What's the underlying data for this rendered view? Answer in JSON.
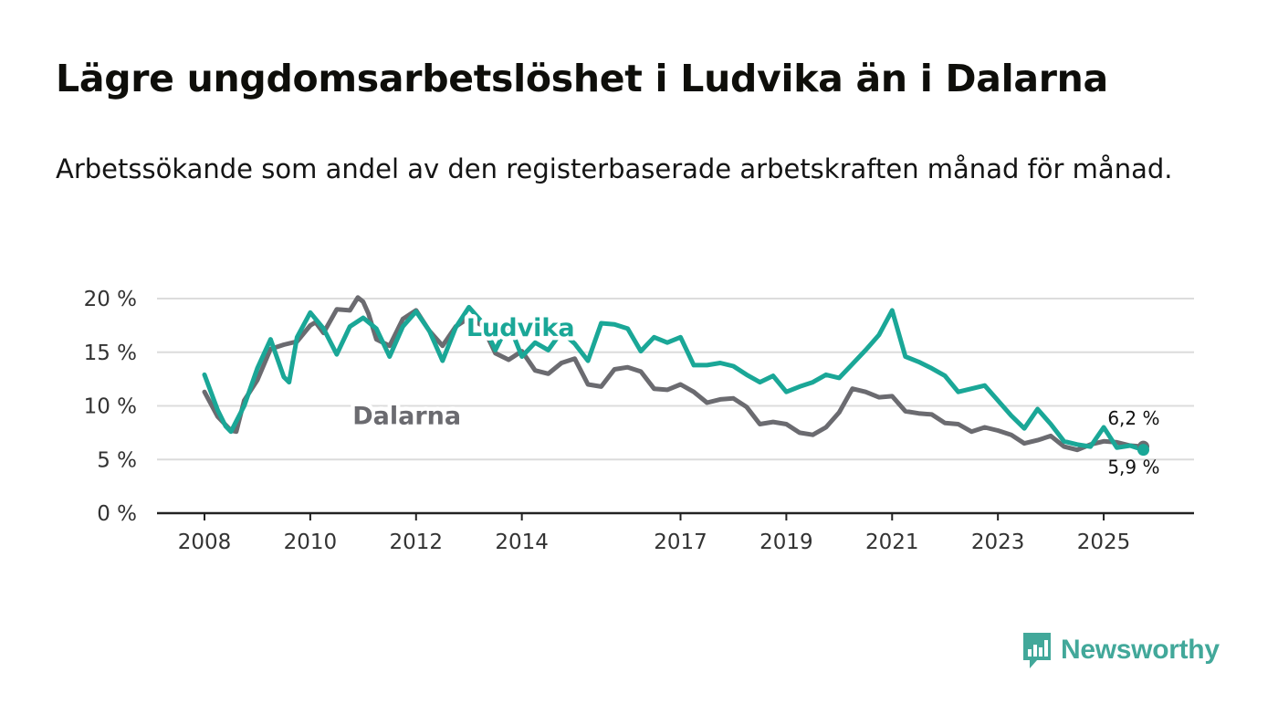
{
  "header": {
    "title": "Lägre ungdomsarbetslöshet i Ludvika än i Dalarna",
    "subtitle": "Arbetssökande som andel av den registerbaserade arbetskraften månad för månad."
  },
  "brand": {
    "name": "Newsworthy",
    "color": "#42a89a",
    "icon": "newsworthy-logo-icon"
  },
  "chart_data": {
    "type": "line",
    "title": "Lägre ungdomsarbetslöshet i Ludvika än i Dalarna",
    "subtitle": "Arbetssökande som andel av den registerbaserade arbetskraften månad för månad.",
    "xlabel": "",
    "ylabel": "",
    "xlim": [
      2008.0,
      2026.0
    ],
    "ylim": [
      0,
      20
    ],
    "grid": true,
    "y_ticks": [
      {
        "value": 0,
        "label": "0 %"
      },
      {
        "value": 5,
        "label": "5 %"
      },
      {
        "value": 10,
        "label": "10 %"
      },
      {
        "value": 15,
        "label": "15 %"
      },
      {
        "value": 20,
        "label": "20 %"
      }
    ],
    "x_ticks": [
      {
        "value": 2008,
        "label": "2008"
      },
      {
        "value": 2010,
        "label": "2010"
      },
      {
        "value": 2012,
        "label": "2012"
      },
      {
        "value": 2014,
        "label": "2014"
      },
      {
        "value": 2017,
        "label": "2017"
      },
      {
        "value": 2019,
        "label": "2019"
      },
      {
        "value": 2021,
        "label": "2021"
      },
      {
        "value": 2023,
        "label": "2023"
      },
      {
        "value": 2025,
        "label": "2025"
      }
    ],
    "series": [
      {
        "name": "Dalarna",
        "color": "#6b6b70",
        "end_label": "6,2 %",
        "label_pos": {
          "x": 2010.8,
          "y": 8.3
        },
        "x": [
          2008.0,
          2008.25,
          2008.5,
          2008.6,
          2008.75,
          2009.0,
          2009.25,
          2009.5,
          2009.75,
          2010.0,
          2010.1,
          2010.25,
          2010.5,
          2010.75,
          2010.9,
          2011.0,
          2011.1,
          2011.25,
          2011.5,
          2011.75,
          2012.0,
          2012.25,
          2012.5,
          2012.75,
          2013.0,
          2013.25,
          2013.5,
          2013.75,
          2014.0,
          2014.25,
          2014.5,
          2014.75,
          2015.0,
          2015.25,
          2015.5,
          2015.75,
          2016.0,
          2016.25,
          2016.5,
          2016.75,
          2017.0,
          2017.25,
          2017.5,
          2017.75,
          2018.0,
          2018.25,
          2018.5,
          2018.75,
          2019.0,
          2019.25,
          2019.5,
          2019.75,
          2020.0,
          2020.25,
          2020.5,
          2020.75,
          2021.0,
          2021.25,
          2021.5,
          2021.75,
          2022.0,
          2022.25,
          2022.5,
          2022.75,
          2023.0,
          2023.25,
          2023.5,
          2023.75,
          2024.0,
          2024.25,
          2024.5,
          2024.75,
          2025.0,
          2025.25,
          2025.5,
          2025.75
        ],
        "values": [
          11.3,
          9.0,
          7.7,
          7.6,
          10.5,
          12.4,
          15.3,
          15.7,
          16.0,
          17.5,
          17.8,
          16.8,
          19.0,
          18.9,
          20.1,
          19.7,
          18.6,
          16.2,
          15.6,
          18.1,
          18.9,
          17.0,
          15.6,
          17.4,
          18.2,
          17.5,
          14.9,
          14.3,
          15.1,
          13.3,
          13.0,
          14.0,
          14.4,
          12.0,
          11.8,
          13.4,
          13.6,
          13.2,
          11.6,
          11.5,
          12.0,
          11.3,
          10.3,
          10.6,
          10.7,
          9.9,
          8.3,
          8.5,
          8.3,
          7.5,
          7.3,
          8.0,
          9.4,
          11.6,
          11.3,
          10.8,
          10.9,
          9.5,
          9.3,
          9.2,
          8.4,
          8.3,
          7.6,
          8.0,
          7.7,
          7.3,
          6.5,
          6.8,
          7.2,
          6.2,
          5.9,
          6.4,
          6.7,
          6.6,
          6.3,
          6.2
        ]
      },
      {
        "name": "Ludvika",
        "color": "#1aa797",
        "end_label": "5,9 %",
        "label_pos": {
          "x": 2012.95,
          "y": 16.5
        },
        "x": [
          2008.0,
          2008.25,
          2008.4,
          2008.5,
          2008.75,
          2009.0,
          2009.25,
          2009.5,
          2009.6,
          2009.75,
          2010.0,
          2010.25,
          2010.5,
          2010.75,
          2011.0,
          2011.25,
          2011.5,
          2011.75,
          2012.0,
          2012.25,
          2012.5,
          2012.75,
          2013.0,
          2013.25,
          2013.5,
          2013.75,
          2014.0,
          2014.25,
          2014.5,
          2014.75,
          2015.0,
          2015.25,
          2015.5,
          2015.75,
          2016.0,
          2016.25,
          2016.5,
          2016.75,
          2017.0,
          2017.25,
          2017.5,
          2017.75,
          2018.0,
          2018.25,
          2018.5,
          2018.75,
          2019.0,
          2019.25,
          2019.5,
          2019.75,
          2020.0,
          2020.25,
          2020.5,
          2020.75,
          2021.0,
          2021.25,
          2021.5,
          2021.75,
          2022.0,
          2022.25,
          2022.5,
          2022.75,
          2023.0,
          2023.25,
          2023.5,
          2023.75,
          2024.0,
          2024.25,
          2024.5,
          2024.75,
          2025.0,
          2025.25,
          2025.5,
          2025.75
        ],
        "values": [
          12.9,
          9.6,
          8.1,
          7.6,
          10.0,
          13.5,
          16.2,
          12.7,
          12.2,
          16.4,
          18.7,
          17.2,
          14.8,
          17.4,
          18.2,
          17.2,
          14.6,
          17.4,
          18.8,
          17.0,
          14.2,
          17.3,
          19.2,
          17.8,
          15.2,
          17.7,
          14.6,
          15.9,
          15.2,
          16.9,
          15.8,
          14.2,
          17.7,
          17.6,
          17.2,
          15.1,
          16.4,
          15.9,
          16.4,
          13.8,
          13.8,
          14.0,
          13.7,
          12.9,
          12.2,
          12.8,
          11.3,
          11.8,
          12.2,
          12.9,
          12.6,
          13.9,
          15.2,
          16.6,
          18.9,
          14.6,
          14.1,
          13.5,
          12.8,
          11.3,
          11.6,
          11.9,
          10.5,
          9.1,
          7.9,
          9.7,
          8.3,
          6.7,
          6.4,
          6.2,
          8.0,
          6.1,
          6.3,
          5.9
        ]
      }
    ]
  }
}
